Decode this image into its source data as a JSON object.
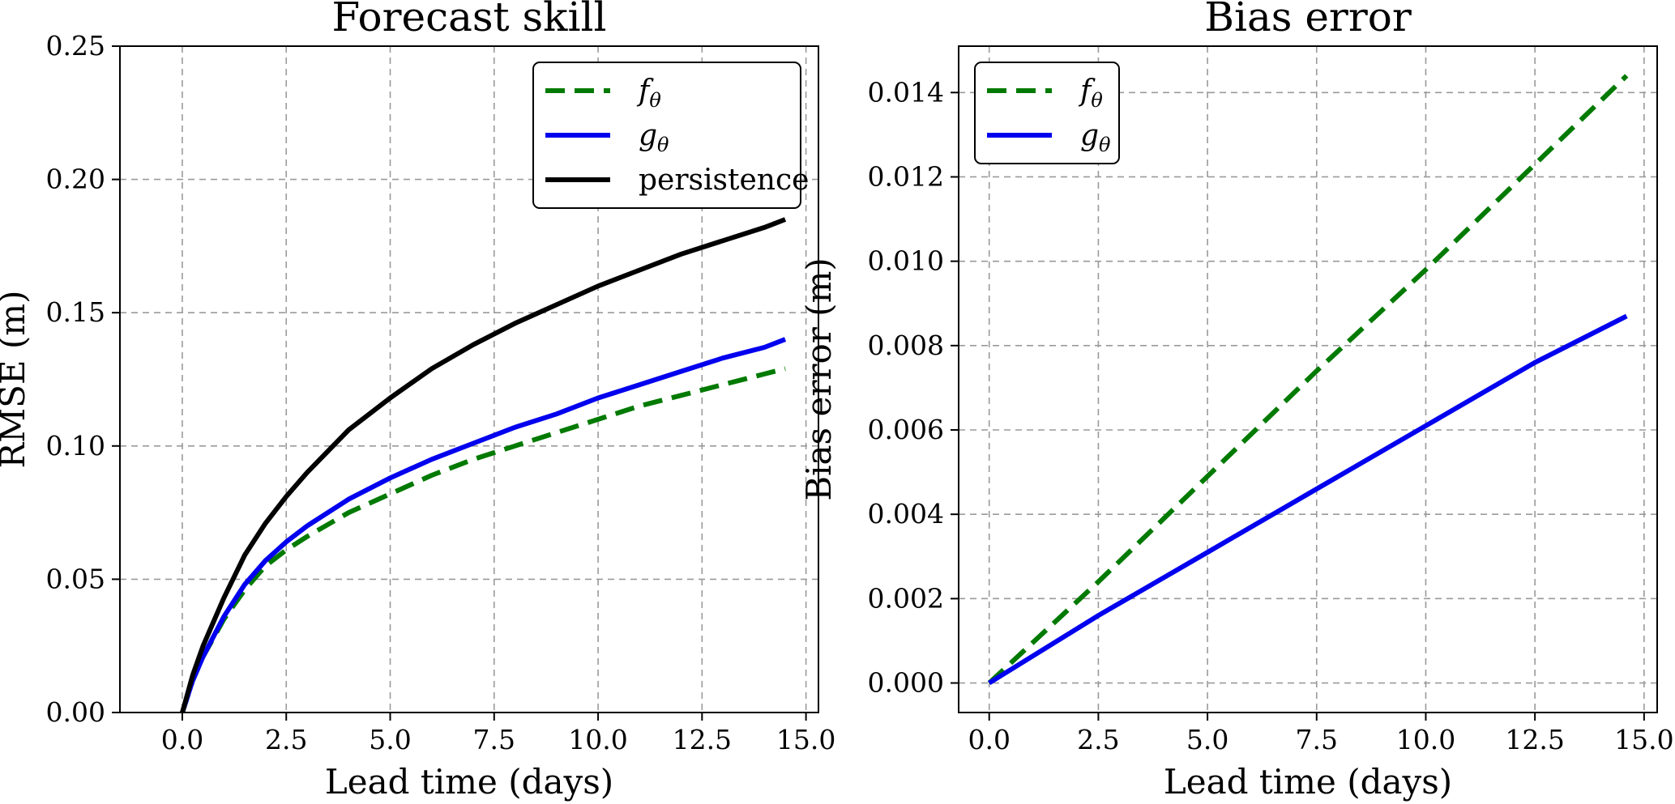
{
  "chart_data": [
    {
      "type": "line",
      "title": "Forecast skill",
      "xlabel": "Lead time (days)",
      "ylabel": "RMSE (m)",
      "xlim": [
        -1.5,
        15.3
      ],
      "ylim": [
        0,
        0.25
      ],
      "xticks": [
        0.0,
        2.5,
        5.0,
        7.5,
        10.0,
        12.5,
        15.0
      ],
      "xtick_labels": [
        "0.0",
        "2.5",
        "5.0",
        "7.5",
        "10.0",
        "12.5",
        "15.0"
      ],
      "yticks": [
        0.0,
        0.05,
        0.1,
        0.15,
        0.2,
        0.25
      ],
      "ytick_labels": [
        "0.00",
        "0.05",
        "0.10",
        "0.15",
        "0.20",
        "0.25"
      ],
      "grid": true,
      "legend_position": "top-right",
      "series": [
        {
          "name": "f",
          "name_sub": "θ",
          "color": "#007a00",
          "dash": true,
          "x": [
            0,
            0.25,
            0.5,
            1,
            1.5,
            2,
            2.5,
            3,
            4,
            5,
            6,
            7,
            8,
            9,
            10,
            11,
            12,
            13,
            14,
            14.5
          ],
          "y": [
            0,
            0.012,
            0.021,
            0.035,
            0.046,
            0.055,
            0.061,
            0.066,
            0.075,
            0.082,
            0.089,
            0.095,
            0.1,
            0.105,
            0.11,
            0.115,
            0.119,
            0.123,
            0.127,
            0.129
          ]
        },
        {
          "name": "g",
          "name_sub": "θ",
          "color": "#0000ee",
          "dash": false,
          "x": [
            0,
            0.25,
            0.5,
            1,
            1.5,
            2,
            2.5,
            3,
            4,
            5,
            6,
            7,
            8,
            9,
            10,
            11,
            12,
            13,
            14,
            14.5
          ],
          "y": [
            0,
            0.012,
            0.021,
            0.036,
            0.048,
            0.057,
            0.064,
            0.07,
            0.08,
            0.088,
            0.095,
            0.101,
            0.107,
            0.112,
            0.118,
            0.123,
            0.128,
            0.133,
            0.137,
            0.14
          ]
        },
        {
          "name": "persistence",
          "color": "#000000",
          "dash": false,
          "x": [
            0,
            0.25,
            0.5,
            1,
            1.5,
            2,
            2.5,
            3,
            4,
            5,
            6,
            7,
            8,
            9,
            10,
            11,
            12,
            13,
            14,
            14.5
          ],
          "y": [
            0,
            0.014,
            0.025,
            0.043,
            0.059,
            0.071,
            0.081,
            0.09,
            0.106,
            0.118,
            0.129,
            0.138,
            0.146,
            0.153,
            0.16,
            0.166,
            0.172,
            0.177,
            0.182,
            0.185
          ]
        }
      ]
    },
    {
      "type": "line",
      "title": "Bias error",
      "xlabel": "Lead time (days)",
      "ylabel": "Bias error (m)",
      "xlim": [
        -0.7,
        15.3
      ],
      "ylim": [
        -0.0007,
        0.0151
      ],
      "xticks": [
        0.0,
        2.5,
        5.0,
        7.5,
        10.0,
        12.5,
        15.0
      ],
      "xtick_labels": [
        "0.0",
        "2.5",
        "5.0",
        "7.5",
        "10.0",
        "12.5",
        "15.0"
      ],
      "yticks": [
        0.0,
        0.002,
        0.004,
        0.006,
        0.008,
        0.01,
        0.012,
        0.014
      ],
      "ytick_labels": [
        "0.000",
        "0.002",
        "0.004",
        "0.006",
        "0.008",
        "0.010",
        "0.012",
        "0.014"
      ],
      "grid": true,
      "legend_position": "top-left",
      "series": [
        {
          "name": "f",
          "name_sub": "θ",
          "color": "#007a00",
          "dash": true,
          "x": [
            0,
            2.5,
            5,
            7.5,
            10,
            12.5,
            14.6
          ],
          "y": [
            0,
            0.0024,
            0.0049,
            0.0074,
            0.0098,
            0.0123,
            0.0144
          ]
        },
        {
          "name": "g",
          "name_sub": "θ",
          "color": "#0000ee",
          "dash": false,
          "x": [
            0,
            2.5,
            5,
            7.5,
            10,
            12.5,
            14.6
          ],
          "y": [
            0,
            0.0016,
            0.0031,
            0.0046,
            0.0061,
            0.0076,
            0.0087
          ]
        }
      ]
    }
  ]
}
